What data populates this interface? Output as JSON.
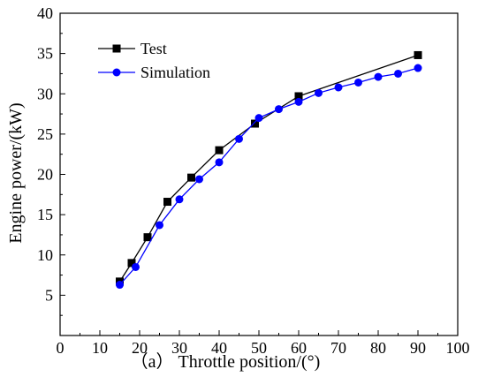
{
  "chart_data": {
    "type": "line",
    "xlabel": "（a） Throttle position/(°)",
    "ylabel": "Engine power/(kW)",
    "xlim": [
      0,
      100
    ],
    "ylim": [
      0,
      40
    ],
    "xticks": [
      0,
      10,
      20,
      30,
      40,
      50,
      60,
      70,
      80,
      90,
      100
    ],
    "yticks": [
      5,
      10,
      15,
      20,
      25,
      30,
      35,
      40
    ],
    "grid": false,
    "legend_position": "top-left",
    "series": [
      {
        "name": "Test",
        "color": "#000000",
        "marker": "square",
        "x": [
          15,
          18,
          22,
          27,
          33,
          40,
          49,
          60,
          90
        ],
        "y": [
          6.7,
          9.0,
          12.2,
          16.6,
          19.6,
          23.0,
          26.3,
          29.7,
          34.8
        ]
      },
      {
        "name": "Simulation",
        "color": "#0000ff",
        "marker": "circle",
        "x": [
          15,
          19,
          25,
          30,
          35,
          40,
          45,
          50,
          55,
          60,
          65,
          70,
          75,
          80,
          85,
          90
        ],
        "y": [
          6.3,
          8.5,
          13.7,
          16.9,
          19.4,
          21.5,
          24.4,
          27.0,
          28.1,
          29.0,
          30.1,
          30.8,
          31.4,
          32.1,
          32.5,
          33.2
        ]
      }
    ]
  }
}
